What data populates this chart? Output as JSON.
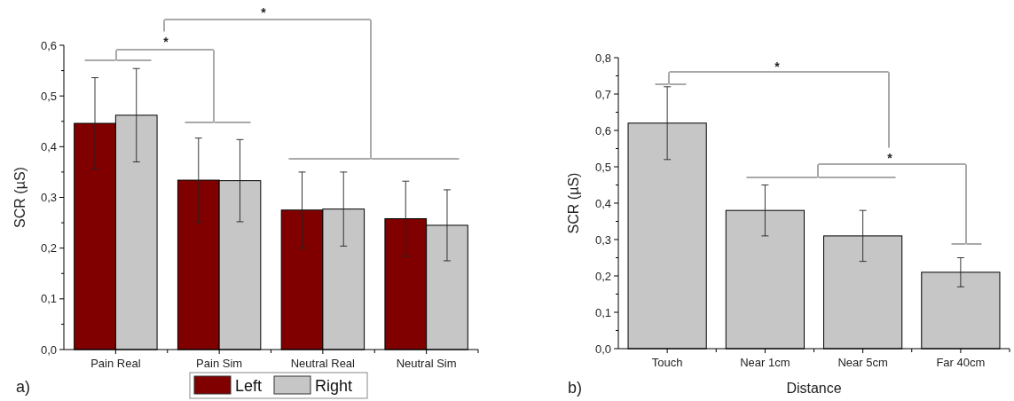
{
  "chart_data": [
    {
      "type": "bar",
      "ylabel": "SCR (µS)",
      "categories": [
        "Pain Real",
        "Pain Sim",
        "Neutral Real",
        "Neutral Sim"
      ],
      "series": [
        {
          "name": "Left",
          "color": "#800000",
          "values": [
            0.446,
            0.334,
            0.275,
            0.258
          ],
          "errors": [
            0.09,
            0.083,
            0.075,
            0.074
          ]
        },
        {
          "name": "Right",
          "color": "#c6c6c6",
          "values": [
            0.462,
            0.333,
            0.277,
            0.245
          ],
          "errors": [
            0.092,
            0.081,
            0.073,
            0.07
          ]
        }
      ],
      "ylim": [
        0,
        0.6
      ],
      "yticks": [
        {
          "value": 0,
          "label": "0,0"
        },
        {
          "value": 0.1,
          "label": "0,1"
        },
        {
          "value": 0.2,
          "label": "0,2"
        },
        {
          "value": 0.3,
          "label": "0,3"
        },
        {
          "value": 0.4,
          "label": "0,4"
        },
        {
          "value": 0.5,
          "label": "0,5"
        },
        {
          "value": 0.6,
          "label": "0,6"
        }
      ],
      "legend": "bottom",
      "annotations": [
        "a)",
        "*",
        "*"
      ]
    },
    {
      "type": "bar",
      "ylabel": "SCR (µS)",
      "xlabel": "Distance",
      "categories": [
        "Touch",
        "Near 1cm",
        "Near 5cm",
        "Far 40cm"
      ],
      "series": [
        {
          "color": "#c6c6c6",
          "values": [
            0.62,
            0.38,
            0.31,
            0.21
          ],
          "errors": [
            0.1,
            0.07,
            0.07,
            0.04
          ]
        }
      ],
      "ylim": [
        0,
        0.8
      ],
      "yticks": [
        {
          "value": 0,
          "label": "0,0"
        },
        {
          "value": 0.1,
          "label": "0,1"
        },
        {
          "value": 0.2,
          "label": "0,2"
        },
        {
          "value": 0.3,
          "label": "0,3"
        },
        {
          "value": 0.4,
          "label": "0,4"
        },
        {
          "value": 0.5,
          "label": "0,5"
        },
        {
          "value": 0.6,
          "label": "0,6"
        },
        {
          "value": 0.7,
          "label": "0,7"
        },
        {
          "value": 0.8,
          "label": "0,8"
        }
      ],
      "annotations": [
        "b)",
        "*",
        "*"
      ]
    }
  ]
}
